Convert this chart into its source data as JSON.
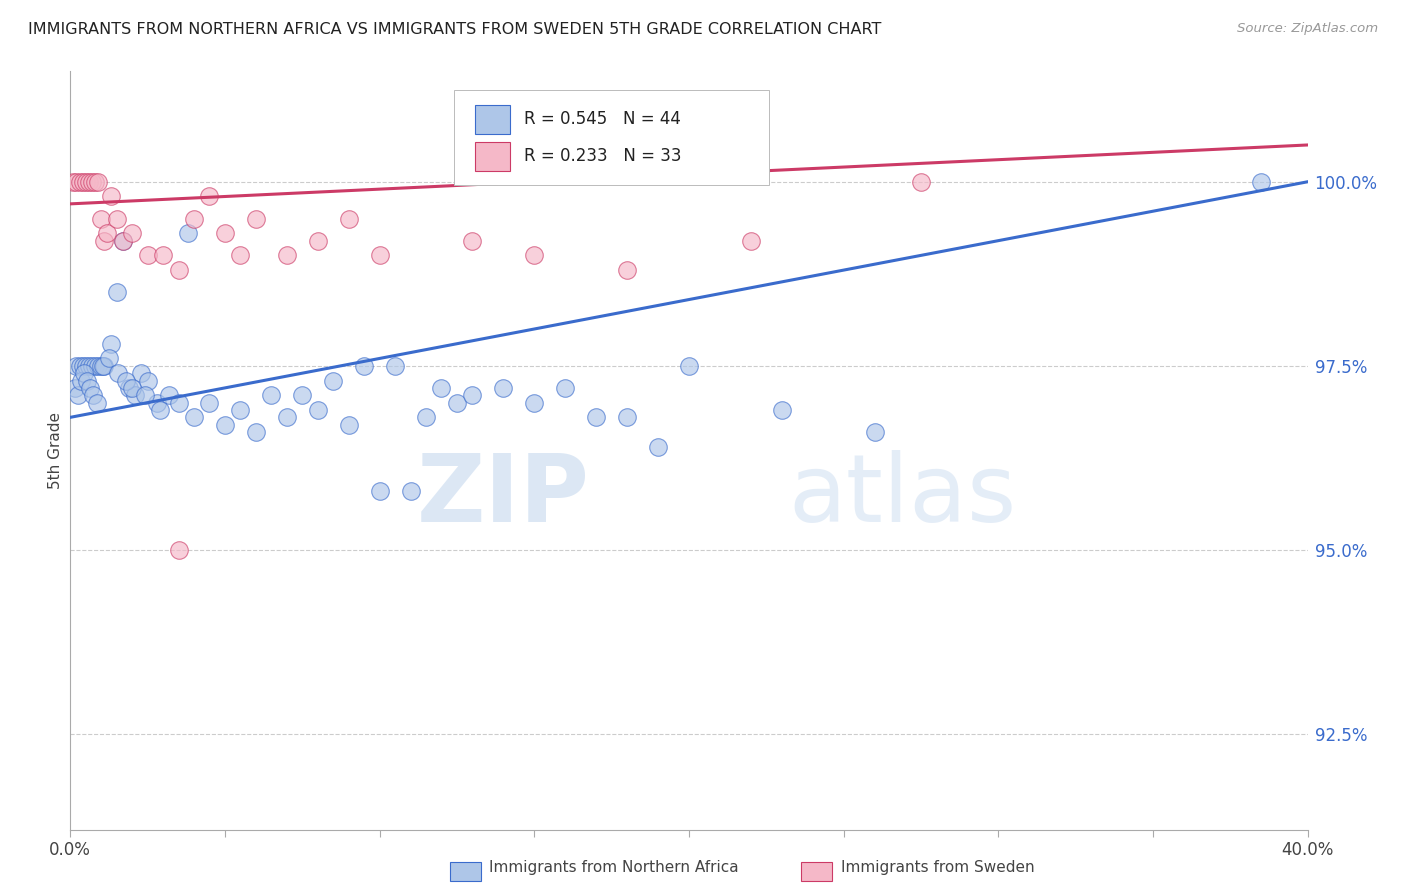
{
  "title": "IMMIGRANTS FROM NORTHERN AFRICA VS IMMIGRANTS FROM SWEDEN 5TH GRADE CORRELATION CHART",
  "source": "Source: ZipAtlas.com",
  "ylabel": "5th Grade",
  "y_ticks": [
    92.5,
    95.0,
    97.5,
    100.0
  ],
  "y_tick_labels": [
    "92.5%",
    "95.0%",
    "97.5%",
    "100.0%"
  ],
  "xlim": [
    0.0,
    40.0
  ],
  "ylim": [
    91.2,
    101.5
  ],
  "legend_blue_R": "0.545",
  "legend_blue_N": "44",
  "legend_pink_R": "0.233",
  "legend_pink_N": "33",
  "blue_color": "#aec6e8",
  "pink_color": "#f5b8c8",
  "blue_line_color": "#3a6bcc",
  "pink_line_color": "#cc3a66",
  "watermark_zip": "ZIP",
  "watermark_atlas": "atlas",
  "blue_scatter_x": [
    0.2,
    0.3,
    0.4,
    0.5,
    0.6,
    0.7,
    0.8,
    0.9,
    1.0,
    1.1,
    1.3,
    1.5,
    1.7,
    1.9,
    2.1,
    2.3,
    2.5,
    2.8,
    3.2,
    3.8,
    4.5,
    5.5,
    6.5,
    7.5,
    8.5,
    9.5,
    10.5,
    11.5,
    12.5,
    14.0,
    16.0,
    18.0,
    23.0,
    38.5
  ],
  "blue_scatter_y": [
    97.5,
    97.5,
    97.5,
    97.5,
    97.5,
    97.5,
    97.5,
    97.5,
    97.5,
    97.5,
    97.8,
    98.5,
    99.2,
    97.2,
    97.1,
    97.4,
    97.3,
    97.0,
    97.1,
    99.3,
    97.0,
    96.9,
    97.1,
    97.1,
    97.3,
    97.5,
    97.5,
    96.8,
    97.0,
    97.2,
    97.2,
    96.8,
    96.9,
    100.0
  ],
  "blue_scatter_x2": [
    0.15,
    0.25,
    0.35,
    0.45,
    0.55,
    0.65,
    0.75,
    0.85,
    1.05,
    1.25,
    1.55,
    1.8,
    2.0,
    2.4,
    2.9,
    3.5,
    4.0,
    5.0,
    6.0,
    7.0,
    8.0,
    9.0,
    10.0,
    11.0,
    12.0,
    13.0,
    15.0,
    17.0,
    19.0,
    20.0,
    26.0
  ],
  "blue_scatter_y2": [
    97.2,
    97.1,
    97.3,
    97.4,
    97.3,
    97.2,
    97.1,
    97.0,
    97.5,
    97.6,
    97.4,
    97.3,
    97.2,
    97.1,
    96.9,
    97.0,
    96.8,
    96.7,
    96.6,
    96.8,
    96.9,
    96.7,
    95.8,
    95.8,
    97.2,
    97.1,
    97.0,
    96.8,
    96.4,
    97.5,
    96.6
  ],
  "pink_scatter_x": [
    0.1,
    0.2,
    0.3,
    0.4,
    0.5,
    0.6,
    0.7,
    0.8,
    0.9,
    1.0,
    1.1,
    1.2,
    1.3,
    1.5,
    1.7,
    2.0,
    2.5,
    3.0,
    3.5,
    4.0,
    4.5,
    5.0,
    5.5,
    6.0,
    7.0,
    8.0,
    9.0,
    10.0,
    13.0,
    15.0,
    18.0,
    22.0,
    27.5
  ],
  "pink_scatter_y": [
    100.0,
    100.0,
    100.0,
    100.0,
    100.0,
    100.0,
    100.0,
    100.0,
    100.0,
    99.5,
    99.2,
    99.3,
    99.8,
    99.5,
    99.2,
    99.3,
    99.0,
    99.0,
    98.8,
    99.5,
    99.8,
    99.3,
    99.0,
    99.5,
    99.0,
    99.2,
    99.5,
    99.0,
    99.2,
    99.0,
    98.8,
    99.2,
    100.0
  ],
  "pink_outlier_x": [
    3.5
  ],
  "pink_outlier_y": [
    95.0
  ],
  "blue_trend_x0": 0.0,
  "blue_trend_y0": 96.8,
  "blue_trend_x1": 40.0,
  "blue_trend_y1": 100.0,
  "pink_trend_x0": 0.0,
  "pink_trend_y0": 99.7,
  "pink_trend_x1": 40.0,
  "pink_trend_y1": 100.5
}
